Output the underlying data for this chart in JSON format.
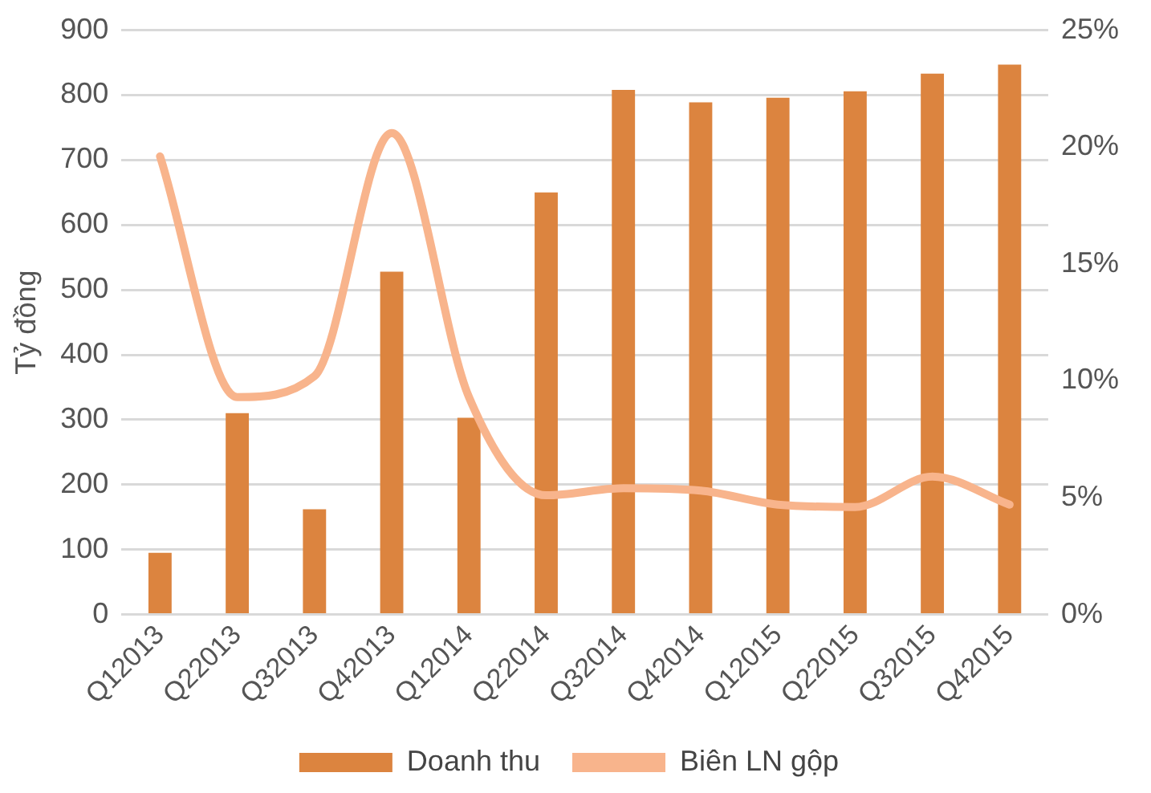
{
  "chart_data": {
    "type": "bar",
    "ylabel": "Tỷ đồng",
    "categories": [
      "Q12013",
      "Q22013",
      "Q32013",
      "Q42013",
      "Q12014",
      "Q22014",
      "Q32014",
      "Q42014",
      "Q12015",
      "Q22015",
      "Q32015",
      "Q42015"
    ],
    "series": [
      {
        "name": "Doanh thu",
        "color": "#dc843f",
        "values": [
          95,
          310,
          162,
          528,
          303,
          650,
          808,
          789,
          796,
          806,
          833,
          847
        ]
      },
      {
        "name": "Biên LN gộp",
        "type": "line",
        "axis": "y2",
        "color": "#f8b48c",
        "values": [
          19.6,
          9.3,
          10.2,
          20.6,
          9.3,
          5.1,
          5.4,
          5.3,
          4.7,
          4.6,
          5.9,
          4.7
        ]
      }
    ],
    "ylim": [
      0,
      900
    ],
    "yticks": [
      0,
      100,
      200,
      300,
      400,
      500,
      600,
      700,
      800,
      900
    ],
    "y2lim": [
      0,
      25
    ],
    "y2ticks": [
      {
        "value": 0,
        "label": "0%"
      },
      {
        "value": 5,
        "label": "5%"
      },
      {
        "value": 10,
        "label": "10%"
      },
      {
        "value": 15,
        "label": "15%"
      },
      {
        "value": 20,
        "label": "20%"
      },
      {
        "value": 25,
        "label": "25%"
      }
    ],
    "grid": "y",
    "legend": "bottom",
    "marker": "none",
    "line_style": "solid"
  }
}
